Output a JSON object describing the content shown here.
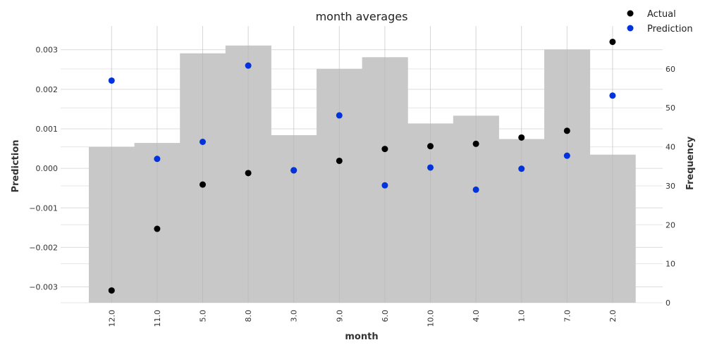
{
  "chart_data": {
    "type": "scatter",
    "title": "month averages",
    "xlabel": "month",
    "ylabel": "Prediction",
    "y2label": "Frequency",
    "categories": [
      "12.0",
      "11.0",
      "5.0",
      "8.0",
      "3.0",
      "9.0",
      "6.0",
      "10.0",
      "4.0",
      "1.0",
      "7.0",
      "2.0"
    ],
    "ylim": [
      -0.0034,
      0.0036
    ],
    "yticks": [
      -0.003,
      -0.002,
      -0.001,
      0.0,
      0.001,
      0.002,
      0.003
    ],
    "ytick_labels": [
      "−0.003",
      "−0.002",
      "−0.001",
      "0.000",
      "0.001",
      "0.002",
      "0.003"
    ],
    "y2lim": [
      0,
      71
    ],
    "y2ticks": [
      0,
      10,
      20,
      30,
      40,
      50,
      60
    ],
    "y2tick_labels": [
      "0",
      "10",
      "20",
      "30",
      "40",
      "50",
      "60"
    ],
    "frequency": [
      40,
      41,
      64,
      66,
      43,
      60,
      63,
      46,
      48,
      42,
      65,
      38
    ],
    "series": [
      {
        "name": "Actual",
        "color": "#000000",
        "values": [
          -0.00309,
          -0.00153,
          -0.00041,
          -0.00012,
          -5e-05,
          0.00019,
          0.00049,
          0.00056,
          0.00062,
          0.00078,
          0.00095,
          0.0032
        ]
      },
      {
        "name": "Prediction",
        "color": "#0033dd",
        "values": [
          0.00222,
          0.00024,
          0.00067,
          0.0026,
          -5e-05,
          0.00134,
          -0.00043,
          2e-05,
          -0.00054,
          -1e-05,
          0.00032,
          0.00184
        ]
      }
    ],
    "bar_color": "#c8c8c8",
    "grid": true,
    "legend_position": "top-right"
  }
}
